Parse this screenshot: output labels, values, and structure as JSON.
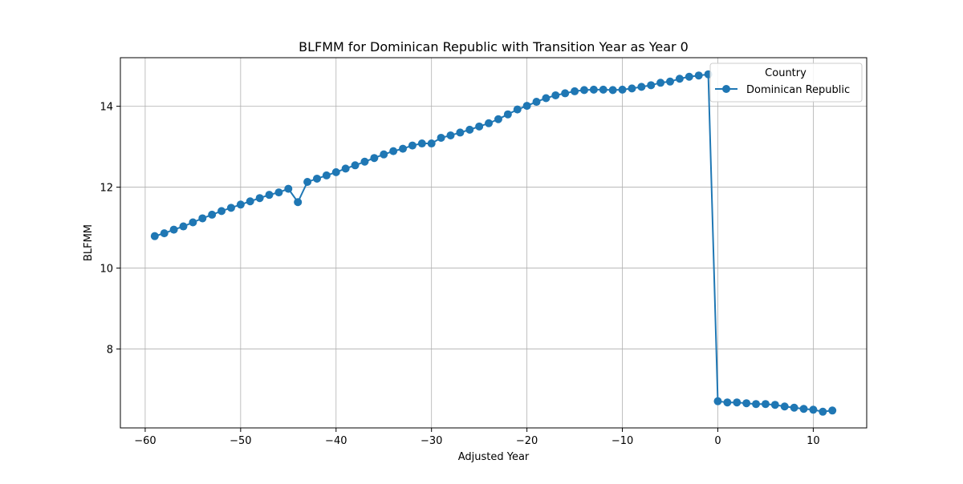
{
  "chart_data": {
    "type": "line",
    "title": "BLFMM for Dominican Republic with Transition Year as Year 0",
    "xlabel": "Adjusted Year",
    "ylabel": "BLFMM",
    "xlim": [
      -62.6,
      15.6
    ],
    "ylim": [
      6.05,
      15.2
    ],
    "xticks": [
      -60,
      -50,
      -40,
      -30,
      -20,
      -10,
      0,
      10
    ],
    "xtick_labels": [
      "−60",
      "−50",
      "−40",
      "−30",
      "−20",
      "−10",
      "0",
      "10"
    ],
    "yticks": [
      8,
      10,
      12,
      14
    ],
    "ytick_labels": [
      "8",
      "10",
      "12",
      "14"
    ],
    "grid": true,
    "legend": {
      "title": "Country",
      "placement": "top-right"
    },
    "series": [
      {
        "name": "Dominican Republic",
        "color": "#1f77b4",
        "marker": "circle",
        "x": [
          -59,
          -58,
          -57,
          -56,
          -55,
          -54,
          -53,
          -52,
          -51,
          -50,
          -49,
          -48,
          -47,
          -46,
          -45,
          -44,
          -43,
          -42,
          -41,
          -40,
          -39,
          -38,
          -37,
          -36,
          -35,
          -34,
          -33,
          -32,
          -31,
          -30,
          -29,
          -28,
          -27,
          -26,
          -25,
          -24,
          -23,
          -22,
          -21,
          -20,
          -19,
          -18,
          -17,
          -16,
          -15,
          -14,
          -13,
          -12,
          -11,
          -10,
          -9,
          -8,
          -7,
          -6,
          -5,
          -4,
          -3,
          -2,
          -1,
          0,
          1,
          2,
          3,
          4,
          5,
          6,
          7,
          8,
          9,
          10,
          11,
          12
        ],
        "y": [
          10.79,
          10.86,
          10.95,
          11.03,
          11.13,
          11.23,
          11.32,
          11.41,
          11.49,
          11.57,
          11.65,
          11.73,
          11.81,
          11.87,
          11.96,
          11.63,
          12.13,
          12.21,
          12.29,
          12.37,
          12.46,
          12.54,
          12.63,
          12.72,
          12.81,
          12.89,
          12.95,
          13.03,
          13.08,
          13.08,
          13.22,
          13.28,
          13.35,
          13.42,
          13.5,
          13.58,
          13.68,
          13.8,
          13.92,
          14.01,
          14.11,
          14.2,
          14.27,
          14.32,
          14.37,
          14.4,
          14.41,
          14.41,
          14.4,
          14.41,
          14.44,
          14.48,
          14.52,
          14.58,
          14.61,
          14.68,
          14.73,
          14.76,
          14.79,
          6.71,
          6.68,
          6.68,
          6.66,
          6.64,
          6.64,
          6.62,
          6.58,
          6.55,
          6.52,
          6.5,
          6.45,
          6.48
        ]
      }
    ]
  }
}
